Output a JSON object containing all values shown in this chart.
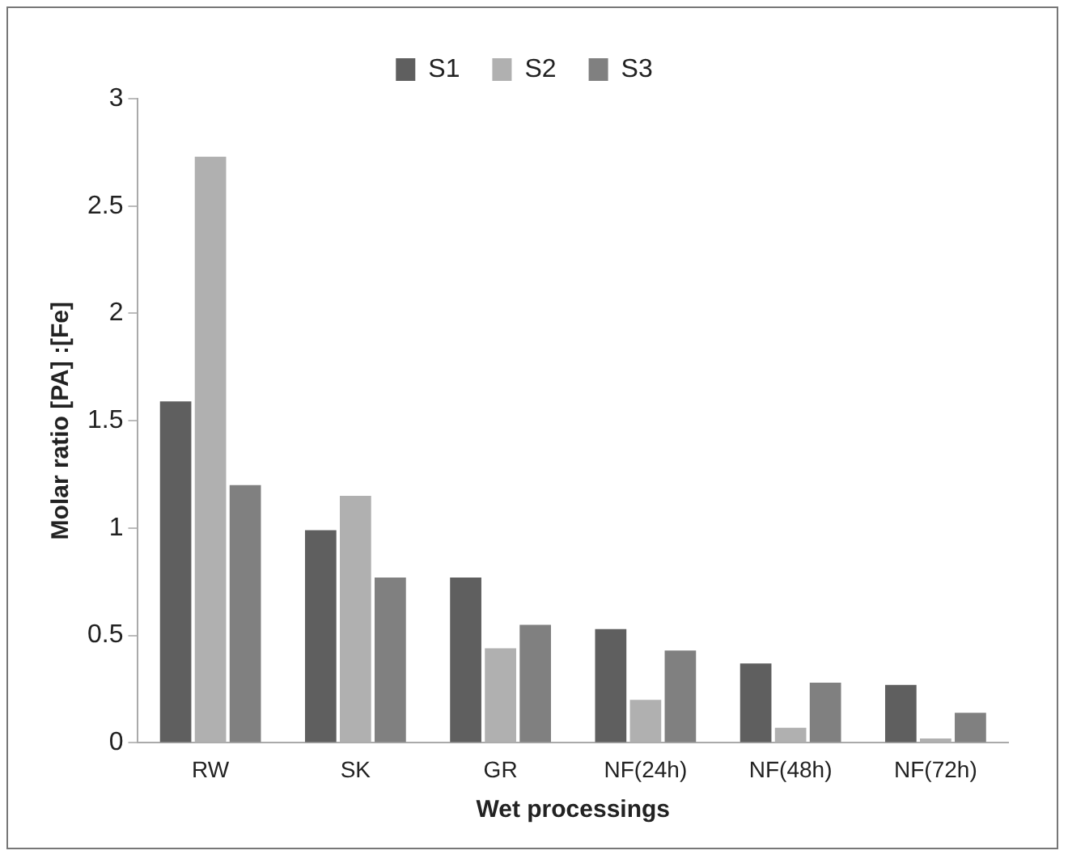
{
  "chart_data": {
    "type": "bar",
    "xlabel": "Wet processings",
    "ylabel": "Molar ratio [PA] :[Fe]",
    "categories": [
      "RW",
      "SK",
      "GR",
      "NF(24h)",
      "NF(48h)",
      "NF(72h)"
    ],
    "series": [
      {
        "name": "S1",
        "color": "#5f5f5f",
        "values": [
          1.59,
          0.99,
          0.77,
          0.53,
          0.37,
          0.27
        ]
      },
      {
        "name": "S2",
        "color": "#b0b0b0",
        "values": [
          2.73,
          1.15,
          0.44,
          0.2,
          0.07,
          0.02
        ]
      },
      {
        "name": "S3",
        "color": "#808080",
        "values": [
          1.2,
          0.77,
          0.55,
          0.43,
          0.28,
          0.14
        ]
      }
    ],
    "ylim": [
      0,
      3
    ],
    "yticks": [
      0,
      0.5,
      1,
      1.5,
      2,
      2.5,
      3
    ],
    "grid": false,
    "legend": "top"
  }
}
